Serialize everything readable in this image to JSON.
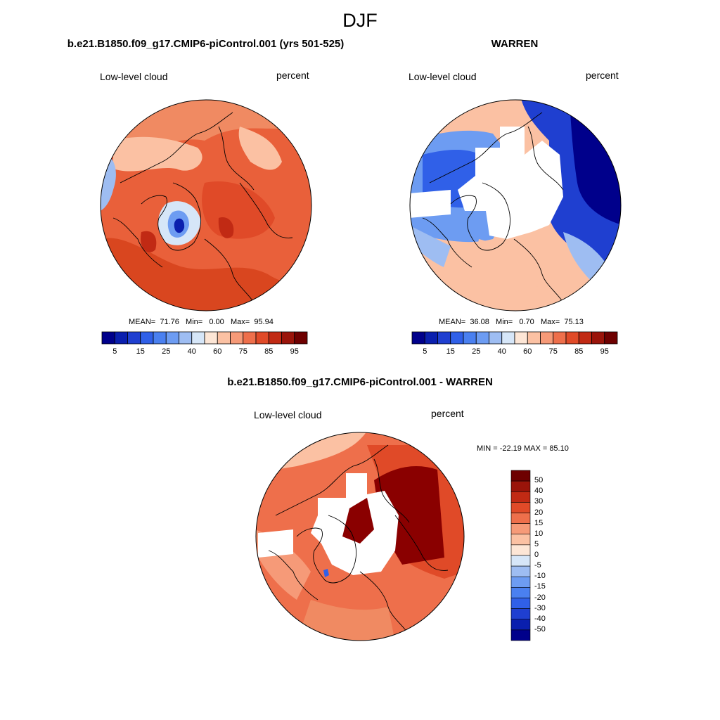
{
  "figure": {
    "season": "DJF"
  },
  "panels": {
    "left": {
      "title": "b.e21.B1850.f09_g17.CMIP6-piControl.001 (yrs 501-525)",
      "variable": "Low-level cloud",
      "units": "percent",
      "mean_label": "MEAN=",
      "mean": "71.76",
      "min_label": "Min=",
      "min": "0.00",
      "max_label": "Max=",
      "max": "95.94"
    },
    "right": {
      "title": "WARREN",
      "variable": "Low-level cloud",
      "units": "percent",
      "mean_label": "MEAN=",
      "mean": "36.08",
      "min_label": "Min=",
      "min": "0.70",
      "max_label": "Max=",
      "max": "75.13"
    },
    "diff": {
      "title": "b.e21.B1850.f09_g17.CMIP6-piControl.001 - WARREN",
      "variable": "Low-level cloud",
      "units": "percent",
      "minmax_label": "MIN = -22.19 MAX =  85.10"
    }
  },
  "chart_data": [
    {
      "type": "polar-contour-map",
      "title": "b.e21.B1850.f09_g17.CMIP6-piControl.001 (yrs 501-525)",
      "variable": "Low-level cloud",
      "units": "percent",
      "stats": {
        "mean": 71.76,
        "min": 0.0,
        "max": 95.94
      },
      "colorbar": {
        "levels": [
          5,
          10,
          15,
          20,
          25,
          30,
          40,
          50,
          60,
          70,
          75,
          80,
          85,
          90,
          95
        ],
        "tick_labels": [
          "5",
          "15",
          "25",
          "40",
          "60",
          "75",
          "85",
          "95"
        ],
        "colors": [
          "#00008b",
          "#0a1fae",
          "#1f3fd0",
          "#3060e8",
          "#4a80f0",
          "#6d9cf2",
          "#9ebdf2",
          "#d6e6f8",
          "#fde6d6",
          "#fbc1a3",
          "#f69a78",
          "#ee6f4b",
          "#e04a28",
          "#c12a14",
          "#9a140a",
          "#6e0000"
        ]
      }
    },
    {
      "type": "polar-contour-map",
      "title": "WARREN",
      "variable": "Low-level cloud",
      "units": "percent",
      "stats": {
        "mean": 36.08,
        "min": 0.7,
        "max": 75.13
      },
      "colorbar": {
        "levels": [
          5,
          10,
          15,
          20,
          25,
          30,
          40,
          50,
          60,
          70,
          75,
          80,
          85,
          90,
          95
        ],
        "tick_labels": [
          "5",
          "15",
          "25",
          "40",
          "60",
          "75",
          "85",
          "95"
        ],
        "colors": [
          "#00008b",
          "#0a1fae",
          "#1f3fd0",
          "#3060e8",
          "#4a80f0",
          "#6d9cf2",
          "#9ebdf2",
          "#d6e6f8",
          "#fde6d6",
          "#fbc1a3",
          "#f69a78",
          "#ee6f4b",
          "#e04a28",
          "#c12a14",
          "#9a140a",
          "#6e0000"
        ]
      }
    },
    {
      "type": "polar-contour-map",
      "title": "b.e21.B1850.f09_g17.CMIP6-piControl.001 - WARREN",
      "variable": "Low-level cloud",
      "units": "percent",
      "stats": {
        "min": -22.19,
        "max": 85.1
      },
      "colorbar": {
        "orientation": "vertical",
        "levels": [
          -50,
          -40,
          -30,
          -20,
          -15,
          -10,
          -5,
          0,
          5,
          10,
          15,
          20,
          30,
          40,
          50
        ],
        "tick_labels": [
          "50",
          "40",
          "30",
          "20",
          "15",
          "10",
          "5",
          "0",
          "-5",
          "-10",
          "-15",
          "-20",
          "-30",
          "-40",
          "-50"
        ],
        "colors": [
          "#00008b",
          "#0a1fae",
          "#1f3fd0",
          "#3060e8",
          "#4a80f0",
          "#6d9cf2",
          "#9ebdf2",
          "#d6e6f8",
          "#fde6d6",
          "#fbc1a3",
          "#f69a78",
          "#ee6f4b",
          "#e04a28",
          "#c12a14",
          "#9a140a",
          "#6e0000"
        ]
      }
    }
  ]
}
